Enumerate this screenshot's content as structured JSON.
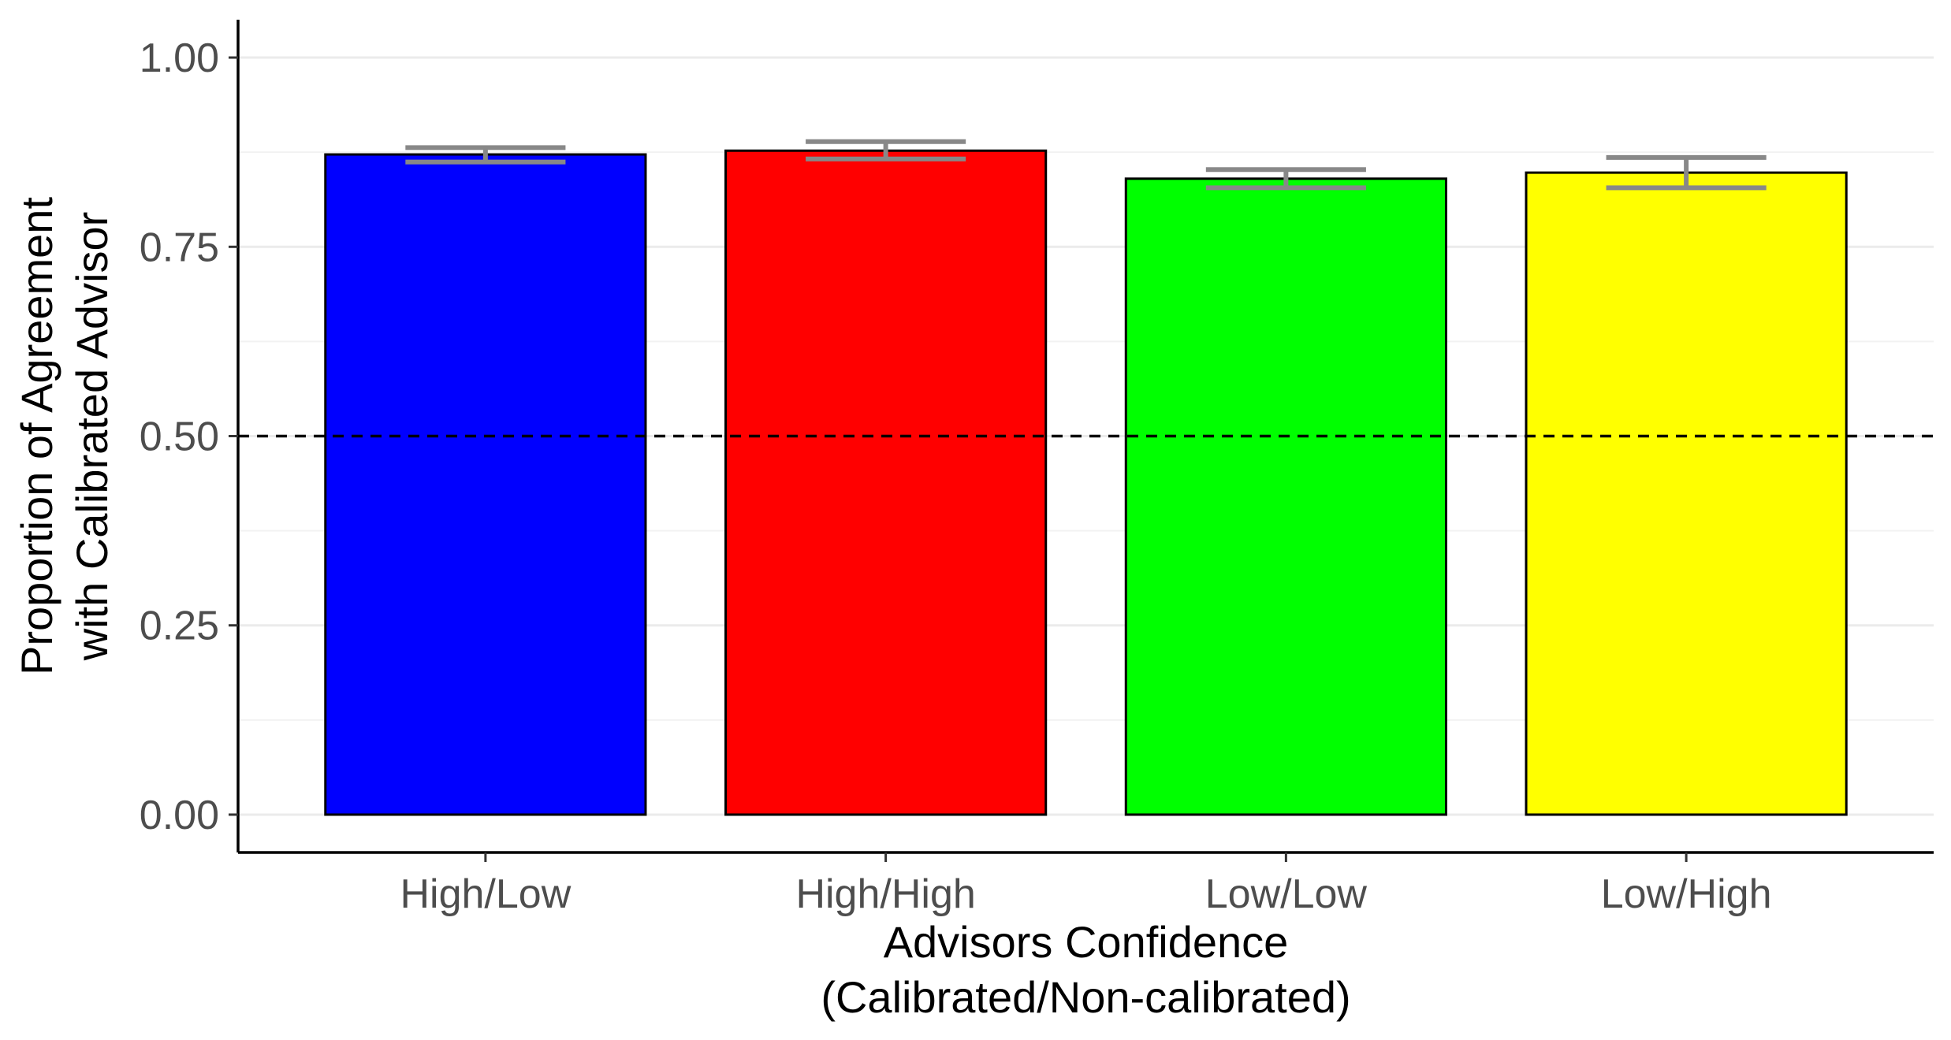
{
  "chart_data": {
    "type": "bar",
    "categories": [
      "High/Low",
      "High/High",
      "Low/Low",
      "Low/High"
    ],
    "values": [
      0.872,
      0.877,
      0.84,
      0.848
    ],
    "error_bars": [
      {
        "low": 0.862,
        "high": 0.881
      },
      {
        "low": 0.866,
        "high": 0.889
      },
      {
        "low": 0.828,
        "high": 0.852
      },
      {
        "low": 0.828,
        "high": 0.868
      }
    ],
    "bar_colors": [
      "#0000ff",
      "#ff0000",
      "#00ff00",
      "#ffff00"
    ],
    "error_bar_color": "#888888",
    "reference_line": {
      "y": 0.5,
      "style": "dashed",
      "color": "#000000"
    },
    "title": "",
    "xlabel_lines": [
      "Advisors Confidence",
      "(Calibrated/Non-calibrated)"
    ],
    "ylabel_lines": [
      "Proportion of Agreement",
      "with Calibrated Advisor"
    ],
    "ylim": [
      -0.05,
      1.05
    ],
    "yticks": [
      0.0,
      0.25,
      0.5,
      0.75,
      1.0
    ],
    "ytick_labels": [
      "0.00",
      "0.25",
      "0.50",
      "0.75",
      "1.00"
    ],
    "grid": "horizontal",
    "legend": "none"
  }
}
